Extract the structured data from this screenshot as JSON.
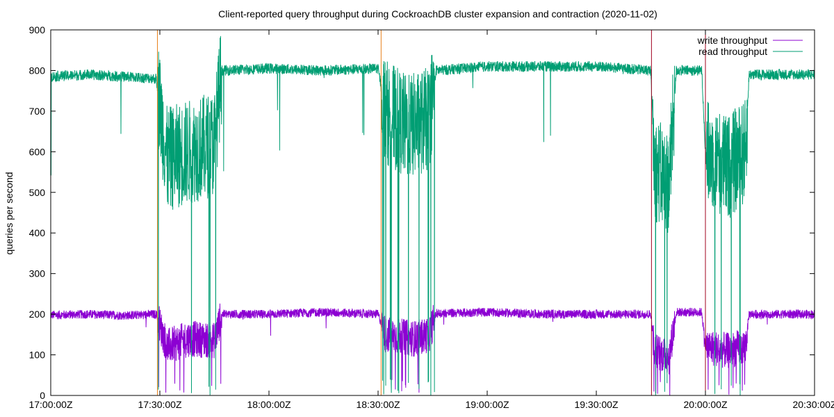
{
  "chart_data": {
    "type": "line",
    "title": "Client-reported query throughput during CockroachDB cluster expansion and contraction (2020-11-02)",
    "xlabel": "",
    "ylabel": "queries per second",
    "xlim": [
      "17:00:00Z",
      "20:30:00Z"
    ],
    "ylim": [
      0,
      900
    ],
    "x_ticks": [
      "17:00:00Z",
      "17:30:00Z",
      "18:00:00Z",
      "18:30:00Z",
      "19:00:00Z",
      "19:30:00Z",
      "20:00:00Z",
      "20:30:00Z"
    ],
    "y_ticks": [
      0,
      100,
      200,
      300,
      400,
      500,
      600,
      700,
      800,
      900
    ],
    "grid": false,
    "legend": {
      "placement": "top-right"
    },
    "event_markers": [
      {
        "time": "17:29:20Z",
        "color": "#e8811c"
      },
      {
        "time": "18:30:50Z",
        "color": "#e8811c"
      },
      {
        "time": "19:45:10Z",
        "color": "#a0001e"
      },
      {
        "time": "20:00:00Z",
        "color": "#a0001e"
      }
    ],
    "series": [
      {
        "name": "write throughput",
        "color": "#8c00d2",
        "points": [
          [
            "17:00:00Z",
            198
          ],
          [
            "17:10:00Z",
            200
          ],
          [
            "17:20:00Z",
            197
          ],
          [
            "17:29:00Z",
            200
          ],
          [
            "17:32:00Z",
            120
          ],
          [
            "17:38:00Z",
            140
          ],
          [
            "17:45:00Z",
            135
          ],
          [
            "17:47:00Z",
            200
          ],
          [
            "18:00:00Z",
            200
          ],
          [
            "18:15:00Z",
            205
          ],
          [
            "18:30:00Z",
            200
          ],
          [
            "18:32:00Z",
            150
          ],
          [
            "18:40:00Z",
            140
          ],
          [
            "18:44:00Z",
            150
          ],
          [
            "18:46:00Z",
            202
          ],
          [
            "19:00:00Z",
            205
          ],
          [
            "19:15:00Z",
            200
          ],
          [
            "19:30:00Z",
            200
          ],
          [
            "19:45:00Z",
            200
          ],
          [
            "19:46:00Z",
            110
          ],
          [
            "19:50:00Z",
            95
          ],
          [
            "19:52:00Z",
            205
          ],
          [
            "19:59:00Z",
            205
          ],
          [
            "20:00:00Z",
            120
          ],
          [
            "20:06:00Z",
            110
          ],
          [
            "20:11:00Z",
            120
          ],
          [
            "20:12:00Z",
            200
          ],
          [
            "20:20:00Z",
            200
          ],
          [
            "20:30:00Z",
            200
          ]
        ]
      },
      {
        "name": "read throughput",
        "color": "#009e73",
        "points": [
          [
            "17:00:00Z",
            785
          ],
          [
            "17:10:00Z",
            790
          ],
          [
            "17:20:00Z",
            785
          ],
          [
            "17:29:00Z",
            780
          ],
          [
            "17:32:00Z",
            580
          ],
          [
            "17:38:00Z",
            600
          ],
          [
            "17:45:00Z",
            620
          ],
          [
            "17:47:00Z",
            800
          ],
          [
            "18:00:00Z",
            805
          ],
          [
            "18:15:00Z",
            800
          ],
          [
            "18:30:00Z",
            805
          ],
          [
            "18:32:00Z",
            700
          ],
          [
            "18:38:00Z",
            660
          ],
          [
            "18:44:00Z",
            680
          ],
          [
            "18:46:00Z",
            800
          ],
          [
            "19:00:00Z",
            810
          ],
          [
            "19:15:00Z",
            810
          ],
          [
            "19:30:00Z",
            810
          ],
          [
            "19:45:00Z",
            800
          ],
          [
            "19:46:00Z",
            560
          ],
          [
            "19:50:00Z",
            520
          ],
          [
            "19:52:00Z",
            800
          ],
          [
            "19:59:00Z",
            800
          ],
          [
            "20:00:00Z",
            600
          ],
          [
            "20:06:00Z",
            560
          ],
          [
            "20:11:00Z",
            600
          ],
          [
            "20:12:00Z",
            790
          ],
          [
            "20:20:00Z",
            790
          ],
          [
            "20:30:00Z",
            790
          ]
        ]
      }
    ]
  }
}
